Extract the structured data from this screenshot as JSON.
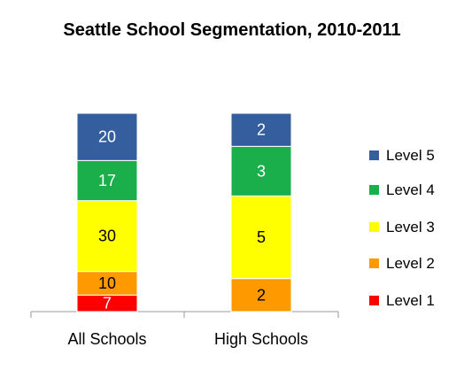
{
  "chart_data": {
    "type": "bar",
    "stacked": true,
    "title": "Seattle School Segmentation, 2010-2011",
    "xlabel": "",
    "ylabel": "",
    "categories": [
      "All Schools",
      "High Schools"
    ],
    "series": [
      {
        "name": "Level 1",
        "color": "#ff0000",
        "label_color": "#ffffff",
        "values": [
          7,
          0
        ]
      },
      {
        "name": "Level 2",
        "color": "#ff9900",
        "label_color": "#000000",
        "values": [
          10,
          2
        ]
      },
      {
        "name": "Level 3",
        "color": "#ffff00",
        "label_color": "#000000",
        "values": [
          30,
          5
        ]
      },
      {
        "name": "Level 4",
        "color": "#1aaf4b",
        "label_color": "#ffffff",
        "values": [
          17,
          3
        ]
      },
      {
        "name": "Level 5",
        "color": "#355e9e",
        "label_color": "#ffffff",
        "values": [
          20,
          2
        ]
      }
    ],
    "normalized": true,
    "legend_position": "right",
    "grid": false
  }
}
